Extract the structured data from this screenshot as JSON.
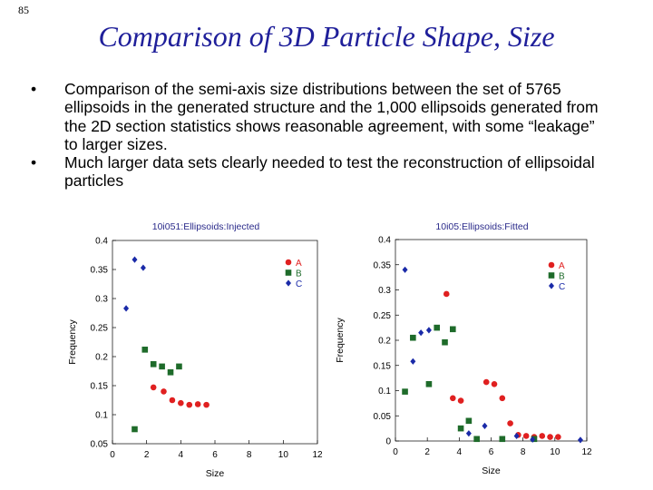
{
  "slide_number": "85",
  "title": "Comparison of 3D Particle Shape, Size",
  "bullets": [
    "Comparison of the semi-axis size distributions between the set of 5765 ellipsoids in the generated structure and the 1,000 ellipsoids generated from the 2D section statistics shows reasonable agreement, with some “leakage” to larger sizes.",
    "Much larger data sets clearly needed to test the reconstruction of ellipsoidal particles"
  ],
  "colors": {
    "title": "#1f1f9a",
    "A": "#e02020",
    "B": "#1e6b2a",
    "C": "#1a2aa8",
    "chart_title": "#2a2a8a"
  },
  "chart_data": [
    {
      "type": "scatter",
      "title": "10i051:Ellipsoids:Injected",
      "xlabel": "Size",
      "ylabel": "Frequency",
      "xlim": [
        0,
        12
      ],
      "ylim": [
        0.05,
        0.4
      ],
      "xticks": [
        0,
        2,
        4,
        6,
        8,
        10,
        12
      ],
      "yticks": [
        0.05,
        0.1,
        0.15,
        0.2,
        0.25,
        0.3,
        0.35,
        0.4
      ],
      "xtick_labels": [
        "0",
        "2",
        "4",
        "6",
        "8",
        "10",
        "12"
      ],
      "ytick_labels": [
        "0.05",
        "0.1",
        "0.15",
        "0.2",
        "0.25",
        "0.3",
        "0.35",
        "0.4"
      ],
      "legend": [
        "A",
        "B",
        "C"
      ],
      "series": [
        {
          "name": "A",
          "marker": "circle",
          "x": [
            2.4,
            3.0,
            3.5,
            4.0,
            4.5,
            5.0,
            5.5
          ],
          "y": [
            0.147,
            0.14,
            0.125,
            0.12,
            0.117,
            0.118,
            0.117
          ]
        },
        {
          "name": "B",
          "marker": "square",
          "x": [
            1.3,
            1.9,
            2.4,
            2.9,
            3.4,
            3.9
          ],
          "y": [
            0.075,
            0.212,
            0.187,
            0.183,
            0.173,
            0.183
          ]
        },
        {
          "name": "C",
          "marker": "diamond",
          "x": [
            0.8,
            1.3,
            1.8
          ],
          "y": [
            0.283,
            0.367,
            0.353
          ]
        }
      ]
    },
    {
      "type": "scatter",
      "title": "10i05:Ellipsoids:Fitted",
      "xlabel": "Size",
      "ylabel": "Frequency",
      "xlim": [
        0,
        12
      ],
      "ylim": [
        0,
        0.4
      ],
      "xticks": [
        0,
        2,
        4,
        6,
        8,
        10,
        12
      ],
      "yticks": [
        0,
        0.05,
        0.1,
        0.15,
        0.2,
        0.25,
        0.3,
        0.35,
        0.4
      ],
      "xtick_labels": [
        "0",
        "2",
        "4",
        "6",
        "8",
        "10",
        "12"
      ],
      "ytick_labels": [
        "0",
        "0.05",
        "0.1",
        "0.15",
        "0.2",
        "0.25",
        "0.3",
        "0.35",
        "0.4"
      ],
      "legend": [
        "A",
        "B",
        "C"
      ],
      "series": [
        {
          "name": "A",
          "marker": "circle",
          "x": [
            3.2,
            3.6,
            4.1,
            5.7,
            6.2,
            6.7,
            7.2,
            7.7,
            8.2,
            8.7,
            9.2,
            9.7,
            10.2
          ],
          "y": [
            0.292,
            0.085,
            0.08,
            0.117,
            0.113,
            0.085,
            0.035,
            0.012,
            0.01,
            0.008,
            0.01,
            0.008,
            0.008
          ]
        },
        {
          "name": "B",
          "marker": "square",
          "x": [
            0.6,
            1.1,
            2.1,
            2.6,
            3.1,
            3.6,
            4.1,
            4.6,
            5.1,
            6.7,
            8.7
          ],
          "y": [
            0.098,
            0.205,
            0.113,
            0.225,
            0.196,
            0.222,
            0.025,
            0.04,
            0.004,
            0.004,
            0.004
          ]
        },
        {
          "name": "C",
          "marker": "diamond",
          "x": [
            0.6,
            1.1,
            1.6,
            2.1,
            4.6,
            5.6,
            7.6,
            8.6,
            11.6
          ],
          "y": [
            0.34,
            0.158,
            0.215,
            0.22,
            0.015,
            0.03,
            0.01,
            0.003,
            0.002
          ]
        }
      ]
    }
  ]
}
